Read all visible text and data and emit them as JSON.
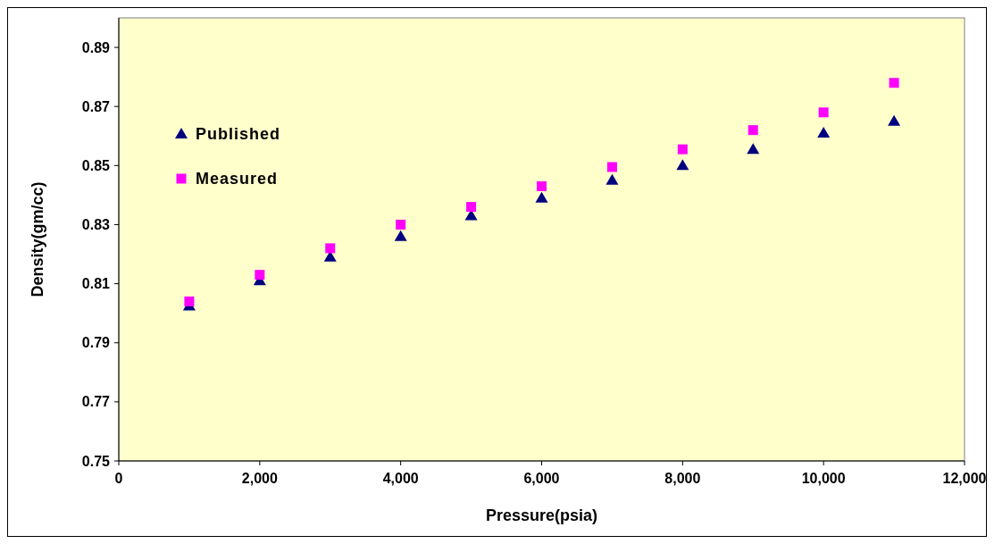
{
  "chart_data": {
    "type": "scatter",
    "xlabel": "Pressure(psia)",
    "ylabel": "Density(gm/cc)",
    "x": [
      1000,
      2000,
      3000,
      4000,
      5000,
      6000,
      7000,
      8000,
      9000,
      10000,
      11000
    ],
    "series": [
      {
        "name": "Published",
        "color": "#000080",
        "marker": "triangle",
        "values": [
          0.8025,
          0.811,
          0.819,
          0.826,
          0.833,
          0.839,
          0.845,
          0.85,
          0.8555,
          0.861,
          0.865
        ]
      },
      {
        "name": "Measured",
        "color": "#ff00ff",
        "marker": "square",
        "values": [
          0.804,
          0.813,
          0.822,
          0.83,
          0.836,
          0.843,
          0.8495,
          0.8555,
          0.862,
          0.868,
          0.878
        ]
      }
    ],
    "xlim": [
      0,
      12000
    ],
    "xticks": [
      0,
      {
        "value": 2000,
        "label": "2,000"
      },
      {
        "value": 4000,
        "label": "4,000"
      },
      {
        "value": 6000,
        "label": "6,000"
      },
      {
        "value": 8000,
        "label": "8,000"
      },
      {
        "value": 10000,
        "label": "10,000"
      },
      {
        "value": 12000,
        "label": "12,000"
      }
    ],
    "ylim": [
      0.75,
      0.9
    ],
    "yticks": [
      0.75,
      0.77,
      0.79,
      0.81,
      0.83,
      0.85,
      0.87,
      0.89
    ],
    "grid": false,
    "legend": "top left"
  }
}
